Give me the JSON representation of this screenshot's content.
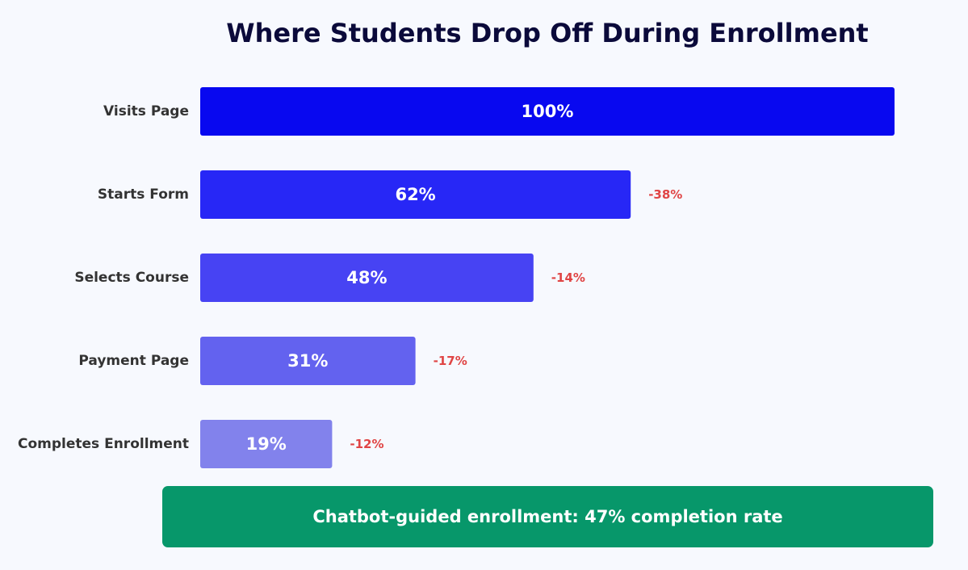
{
  "chart_data": {
    "type": "bar",
    "orientation": "horizontal",
    "title": "Where Students Drop Off During Enrollment",
    "xlabel": "",
    "ylabel": "",
    "xlim": [
      0,
      100
    ],
    "grid": false,
    "categories": [
      "Visits Page",
      "Starts Form",
      "Selects Course",
      "Payment Page",
      "Completes Enrollment"
    ],
    "values": [
      100,
      62,
      48,
      31,
      19
    ],
    "value_labels": [
      "100%",
      "62%",
      "48%",
      "31%",
      "19%"
    ],
    "drop_labels": [
      "",
      "-38%",
      "-14%",
      "-17%",
      "-12%"
    ],
    "colors": [
      "#0808f0",
      "#2727f6",
      "#4743f3",
      "#6362ef",
      "#8282ec"
    ]
  },
  "callout": {
    "text": "Chatbot-guided enrollment: 47% completion rate",
    "color": "#07976a"
  }
}
